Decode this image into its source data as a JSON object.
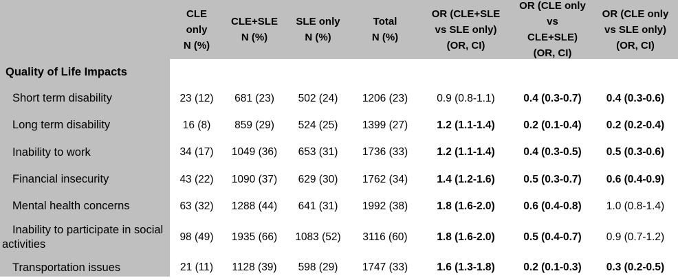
{
  "table": {
    "section_title": "Quality of Life Impacts",
    "columns": [
      {
        "name": "cle-only",
        "lines": [
          "CLE",
          "only",
          "N (%)"
        ]
      },
      {
        "name": "cle-plus-sle",
        "lines": [
          "CLE+SLE",
          "N (%)"
        ]
      },
      {
        "name": "sle-only",
        "lines": [
          "SLE only",
          "N (%)"
        ]
      },
      {
        "name": "total",
        "lines": [
          "Total",
          "N (%)"
        ]
      },
      {
        "name": "or-clesle-vs-sleonly",
        "lines": [
          "OR (CLE+SLE",
          "vs SLE only)",
          "(OR, CI)"
        ]
      },
      {
        "name": "or-cleonly-vs-clesle",
        "lines": [
          "OR (CLE only vs",
          "CLE+SLE)",
          "(OR, CI)"
        ]
      },
      {
        "name": "or-cleonly-vs-sleonly",
        "lines": [
          "OR (CLE only",
          "vs SLE only)",
          "(OR, CI)"
        ]
      }
    ],
    "rows": [
      {
        "label": "Short term disability",
        "cells": [
          {
            "text": "23 (12)",
            "bold": false
          },
          {
            "text": "681 (23)",
            "bold": false
          },
          {
            "text": "502 (24)",
            "bold": false
          },
          {
            "text": "1206 (23)",
            "bold": false
          },
          {
            "text": "0.9 (0.8-1.1)",
            "bold": false
          },
          {
            "text": "0.4 (0.3-0.7)",
            "bold": true
          },
          {
            "text": "0.4 (0.3-0.6)",
            "bold": true
          }
        ]
      },
      {
        "label": "Long term disability",
        "cells": [
          {
            "text": "16 (8)",
            "bold": false
          },
          {
            "text": "859 (29)",
            "bold": false
          },
          {
            "text": "524 (25)",
            "bold": false
          },
          {
            "text": "1399 (27)",
            "bold": false
          },
          {
            "text": "1.2 (1.1-1.4)",
            "bold": true
          },
          {
            "text": "0.2 (0.1-0.4)",
            "bold": true
          },
          {
            "text": "0.2 (0.2-0.4)",
            "bold": true
          }
        ]
      },
      {
        "label": "Inability to work",
        "cells": [
          {
            "text": "34 (17)",
            "bold": false
          },
          {
            "text": "1049 (36)",
            "bold": false
          },
          {
            "text": "653 (31)",
            "bold": false
          },
          {
            "text": "1736 (33)",
            "bold": false
          },
          {
            "text": "1.2 (1.1-1.4)",
            "bold": true
          },
          {
            "text": "0.4 (0.3-0.5)",
            "bold": true
          },
          {
            "text": "0.5 (0.3-0.6)",
            "bold": true
          }
        ]
      },
      {
        "label": "Financial insecurity",
        "cells": [
          {
            "text": "43 (22)",
            "bold": false
          },
          {
            "text": "1090 (37)",
            "bold": false
          },
          {
            "text": "629 (30)",
            "bold": false
          },
          {
            "text": "1762 (34)",
            "bold": false
          },
          {
            "text": "1.4 (1.2-1.6)",
            "bold": true
          },
          {
            "text": "0.5 (0.3-0.7)",
            "bold": true
          },
          {
            "text": "0.6 (0.4-0.9)",
            "bold": true
          }
        ]
      },
      {
        "label": "Mental health concerns",
        "cells": [
          {
            "text": "63 (32)",
            "bold": false
          },
          {
            "text": "1288 (44)",
            "bold": false
          },
          {
            "text": "641 (31)",
            "bold": false
          },
          {
            "text": "1992 (38)",
            "bold": false
          },
          {
            "text": "1.8 (1.6-2.0)",
            "bold": true
          },
          {
            "text": "0.6 (0.4-0.8)",
            "bold": true
          },
          {
            "text": "1.0 (0.8-1.4)",
            "bold": false
          }
        ]
      },
      {
        "label": "Inability to participate in social activities",
        "cells": [
          {
            "text": "98 (49)",
            "bold": false
          },
          {
            "text": "1935 (66)",
            "bold": false
          },
          {
            "text": "1083 (52)",
            "bold": false
          },
          {
            "text": "3116 (60)",
            "bold": false
          },
          {
            "text": "1.8 (1.6-2.0)",
            "bold": true
          },
          {
            "text": "0.5 (0.4-0.7)",
            "bold": true
          },
          {
            "text": "0.9 (0.7-1.2)",
            "bold": false
          }
        ]
      },
      {
        "label": "Transportation issues",
        "cells": [
          {
            "text": "21 (11)",
            "bold": false
          },
          {
            "text": "1128 (39)",
            "bold": false
          },
          {
            "text": "598 (29)",
            "bold": false
          },
          {
            "text": "1747 (33)",
            "bold": false
          },
          {
            "text": "1.6 (1.3-1.8)",
            "bold": true
          },
          {
            "text": "0.2 (0.1-0.3)",
            "bold": true
          },
          {
            "text": "0.3 (0.2-0.5)",
            "bold": true
          }
        ]
      }
    ]
  },
  "colors": {
    "header_bg": "#bfbfbf",
    "label_col_bg": "#bfbfbf",
    "body_bg": "#ffffff",
    "text": "#000000"
  }
}
